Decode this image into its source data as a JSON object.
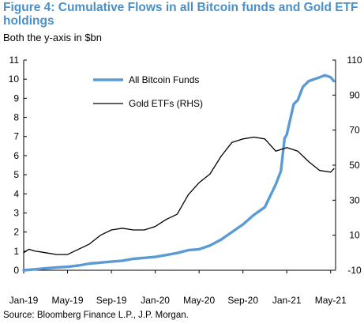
{
  "title": "Figure 4: Cumulative Flows in all Bitcoin funds and Gold ETF holdings",
  "subtitle": "Both the y-axis in $bn",
  "source": "Source: Bloomberg Finance L.P., J.P. Morgan.",
  "chart_data": {
    "type": "line",
    "title": "Figure 4: Cumulative Flows in all Bitcoin funds and Gold ETF holdings",
    "subtitle": "Both the y-axis in $bn",
    "x_ticks": [
      "Jan-19",
      "May-19",
      "Sep-19",
      "Jan-20",
      "May-20",
      "Sep-20",
      "Jan-21",
      "May-21"
    ],
    "x_range": [
      "2019-01",
      "2021-05"
    ],
    "y_left": {
      "min": 0,
      "max": 11,
      "ticks": [
        0,
        1,
        2,
        3,
        4,
        5,
        6,
        7,
        8,
        9,
        10,
        11
      ]
    },
    "y_right": {
      "min": -10,
      "max": 110,
      "ticks": [
        -10,
        10,
        30,
        50,
        70,
        90,
        110
      ]
    },
    "grid": false,
    "legend_position": "top-center",
    "series": [
      {
        "name": "All Bitcoin Funds",
        "axis": "left",
        "color": "#5b9bd5",
        "points": [
          [
            "2019-01",
            0.0
          ],
          [
            "2019-02",
            0.05
          ],
          [
            "2019-03",
            0.1
          ],
          [
            "2019-04",
            0.15
          ],
          [
            "2019-05",
            0.18
          ],
          [
            "2019-06",
            0.25
          ],
          [
            "2019-07",
            0.35
          ],
          [
            "2019-08",
            0.4
          ],
          [
            "2019-09",
            0.45
          ],
          [
            "2019-10",
            0.5
          ],
          [
            "2019-11",
            0.6
          ],
          [
            "2019-12",
            0.65
          ],
          [
            "2020-01",
            0.7
          ],
          [
            "2020-02",
            0.8
          ],
          [
            "2020-03",
            0.9
          ],
          [
            "2020-04",
            1.05
          ],
          [
            "2020-05",
            1.1
          ],
          [
            "2020-06",
            1.3
          ],
          [
            "2020-07",
            1.6
          ],
          [
            "2020-08",
            2.0
          ],
          [
            "2020-09",
            2.4
          ],
          [
            "2020-10",
            2.9
          ],
          [
            "2020-11",
            3.3
          ],
          [
            "2020-12",
            4.5
          ],
          [
            "2020-12-15",
            5.2
          ],
          [
            "2020-12-25",
            6.9
          ],
          [
            "2021-01",
            7.1
          ],
          [
            "2021-01-20",
            8.7
          ],
          [
            "2021-02",
            8.9
          ],
          [
            "2021-02-15",
            9.6
          ],
          [
            "2021-03",
            9.9
          ],
          [
            "2021-04",
            10.1
          ],
          [
            "2021-04-15",
            10.2
          ],
          [
            "2021-05",
            10.1
          ],
          [
            "2021-05-10",
            9.9
          ]
        ]
      },
      {
        "name": "Gold ETFs (RHS)",
        "axis": "right",
        "color": "#000000",
        "points": [
          [
            "2019-01",
            0
          ],
          [
            "2019-01-15",
            2
          ],
          [
            "2019-02",
            1
          ],
          [
            "2019-03",
            0
          ],
          [
            "2019-04",
            -1
          ],
          [
            "2019-05",
            -1
          ],
          [
            "2019-06",
            2
          ],
          [
            "2019-07",
            5
          ],
          [
            "2019-08",
            10
          ],
          [
            "2019-09",
            13
          ],
          [
            "2019-10",
            14
          ],
          [
            "2019-11",
            13
          ],
          [
            "2019-12",
            13
          ],
          [
            "2020-01",
            15
          ],
          [
            "2020-02",
            19
          ],
          [
            "2020-03",
            22
          ],
          [
            "2020-04",
            33
          ],
          [
            "2020-05",
            40
          ],
          [
            "2020-06",
            45
          ],
          [
            "2020-07",
            55
          ],
          [
            "2020-08",
            63
          ],
          [
            "2020-09",
            65
          ],
          [
            "2020-10",
            66
          ],
          [
            "2020-11",
            65
          ],
          [
            "2020-12",
            58
          ],
          [
            "2021-01",
            60
          ],
          [
            "2021-02",
            58
          ],
          [
            "2021-03",
            52
          ],
          [
            "2021-04",
            47
          ],
          [
            "2021-05",
            46
          ],
          [
            "2021-05-10",
            48
          ]
        ]
      }
    ]
  }
}
